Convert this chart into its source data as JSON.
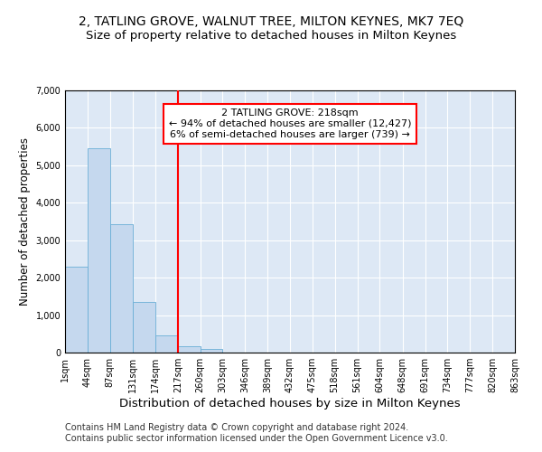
{
  "title": "2, TATLING GROVE, WALNUT TREE, MILTON KEYNES, MK7 7EQ",
  "subtitle": "Size of property relative to detached houses in Milton Keynes",
  "xlabel": "Distribution of detached houses by size in Milton Keynes",
  "ylabel": "Number of detached properties",
  "bin_edges": [
    1,
    44,
    87,
    131,
    174,
    217,
    260,
    303,
    346,
    389,
    432,
    475,
    518,
    561,
    604,
    648,
    691,
    734,
    777,
    820,
    863
  ],
  "bin_counts": [
    2300,
    5450,
    3420,
    1350,
    450,
    175,
    100,
    0,
    0,
    0,
    0,
    0,
    0,
    0,
    0,
    0,
    0,
    0,
    0,
    0
  ],
  "bar_color": "#c5d8ee",
  "bar_edge_color": "#6aaed6",
  "vline_x": 217,
  "vline_color": "red",
  "annotation_text": "2 TATLING GROVE: 218sqm\n← 94% of detached houses are smaller (12,427)\n6% of semi-detached houses are larger (739) →",
  "annotation_box_color": "white",
  "annotation_box_edge_color": "red",
  "ylim": [
    0,
    7000
  ],
  "yticks": [
    0,
    1000,
    2000,
    3000,
    4000,
    5000,
    6000,
    7000
  ],
  "tick_labels": [
    "1sqm",
    "44sqm",
    "87sqm",
    "131sqm",
    "174sqm",
    "217sqm",
    "260sqm",
    "303sqm",
    "346sqm",
    "389sqm",
    "432sqm",
    "475sqm",
    "518sqm",
    "561sqm",
    "604sqm",
    "648sqm",
    "691sqm",
    "734sqm",
    "777sqm",
    "820sqm",
    "863sqm"
  ],
  "footnote": "Contains HM Land Registry data © Crown copyright and database right 2024.\nContains public sector information licensed under the Open Government Licence v3.0.",
  "background_color": "#dde8f5",
  "fig_background_color": "#ffffff",
  "title_fontsize": 10,
  "subtitle_fontsize": 9.5,
  "xlabel_fontsize": 9.5,
  "ylabel_fontsize": 8.5,
  "footnote_fontsize": 7,
  "tick_fontsize": 7
}
